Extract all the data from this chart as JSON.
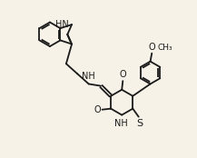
{
  "background_color": "#f7f2e8",
  "line_color": "#1a1a1a",
  "text_color": "#1a1a1a",
  "line_width": 1.3,
  "font_size": 7.0,
  "fig_width": 2.17,
  "fig_height": 1.74,
  "dpi": 100,
  "xlim": [
    0,
    10
  ],
  "ylim": [
    0,
    8
  ]
}
